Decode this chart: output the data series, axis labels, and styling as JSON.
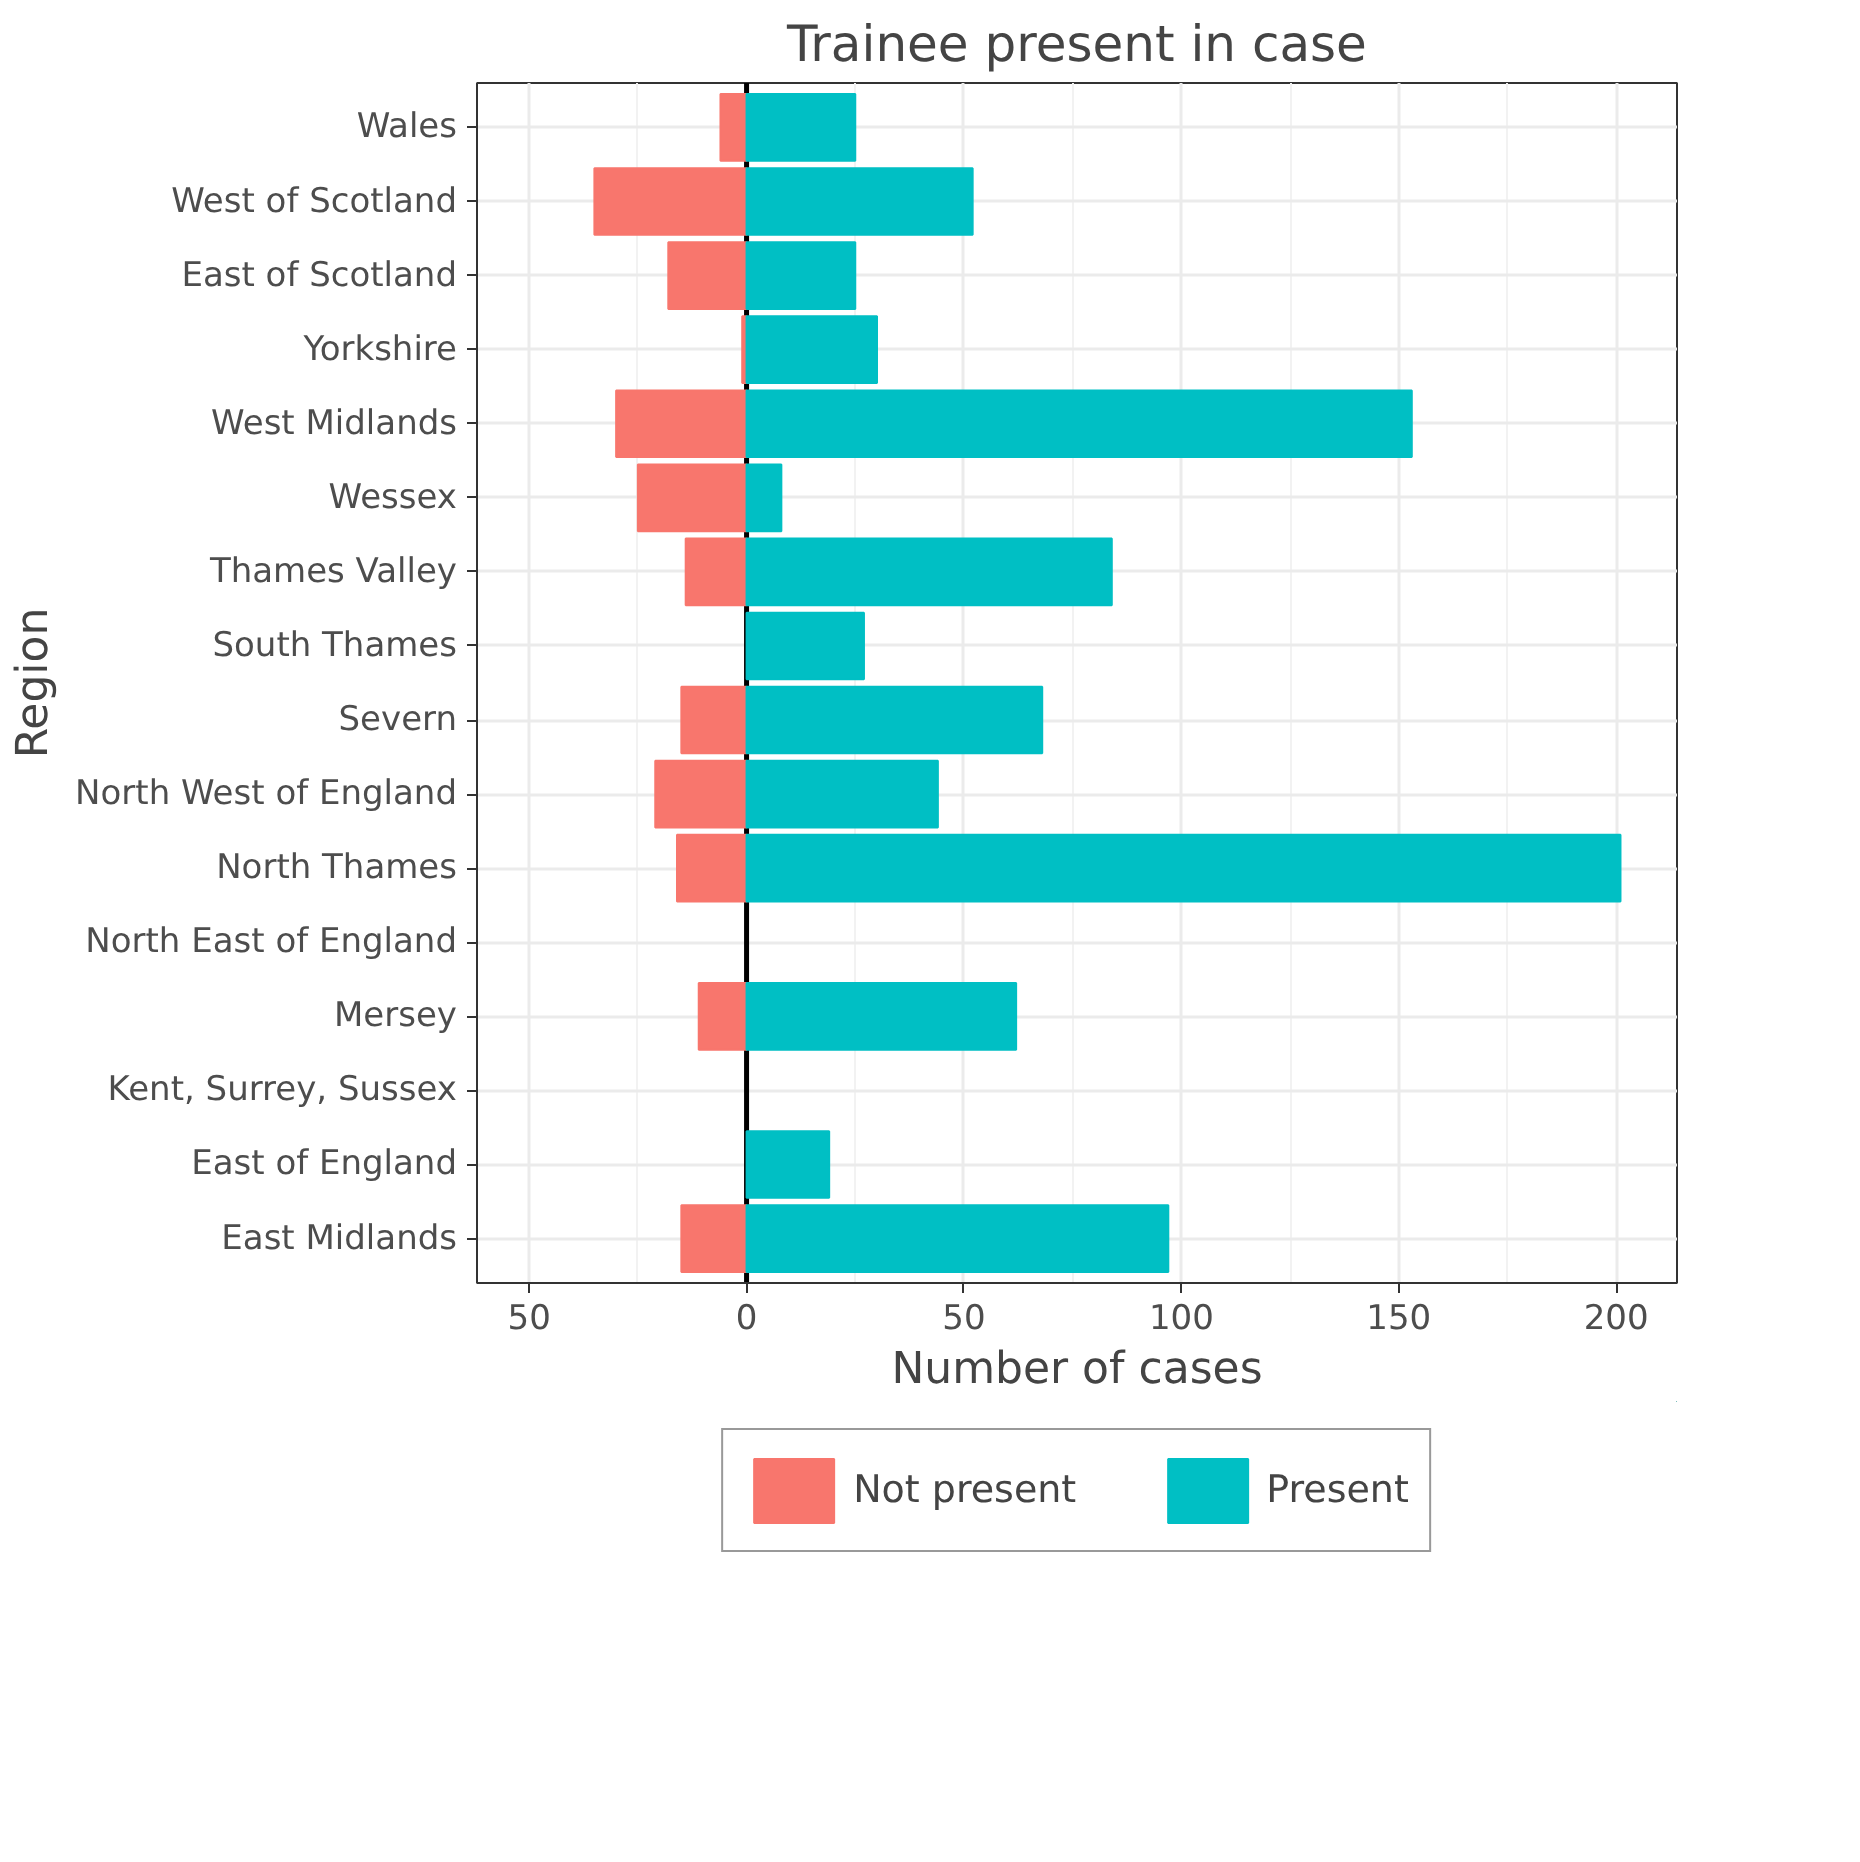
{
  "chart_data": {
    "type": "bar",
    "orientation": "horizontal",
    "stacked": true,
    "title": "Trainee present in case",
    "xlabel": "Number of cases",
    "ylabel": "Region",
    "categories": [
      "Wales",
      "West of Scotland",
      "East of Scotland",
      "Yorkshire",
      "West Midlands",
      "Wessex",
      "Thames Valley",
      "South Thames",
      "Severn",
      "North West of England",
      "North Thames",
      "North East of England",
      "Mersey",
      "Kent, Surrey, Sussex",
      "East of England",
      "East Midlands"
    ],
    "series": [
      {
        "name": "Not present",
        "color": "#f8766d",
        "values": [
          -6,
          -35,
          -18,
          -1,
          -30,
          -25,
          -14,
          null,
          -15,
          -21,
          -16,
          null,
          -11,
          null,
          null,
          -15
        ]
      },
      {
        "name": "Present",
        "color": "#00bfc4",
        "values": [
          25,
          52,
          25,
          30,
          153,
          8,
          84,
          27,
          68,
          44,
          201,
          null,
          62,
          null,
          19,
          97
        ]
      }
    ],
    "xlim": [
      -62,
      214
    ],
    "xticks": [
      {
        "value": -50,
        "label": "50"
      },
      0,
      50,
      100,
      150,
      200
    ],
    "ref_lines": [
      {
        "axis": "x",
        "value": 0,
        "color": "#000000"
      }
    ],
    "grid": true,
    "legend": "bottom"
  }
}
